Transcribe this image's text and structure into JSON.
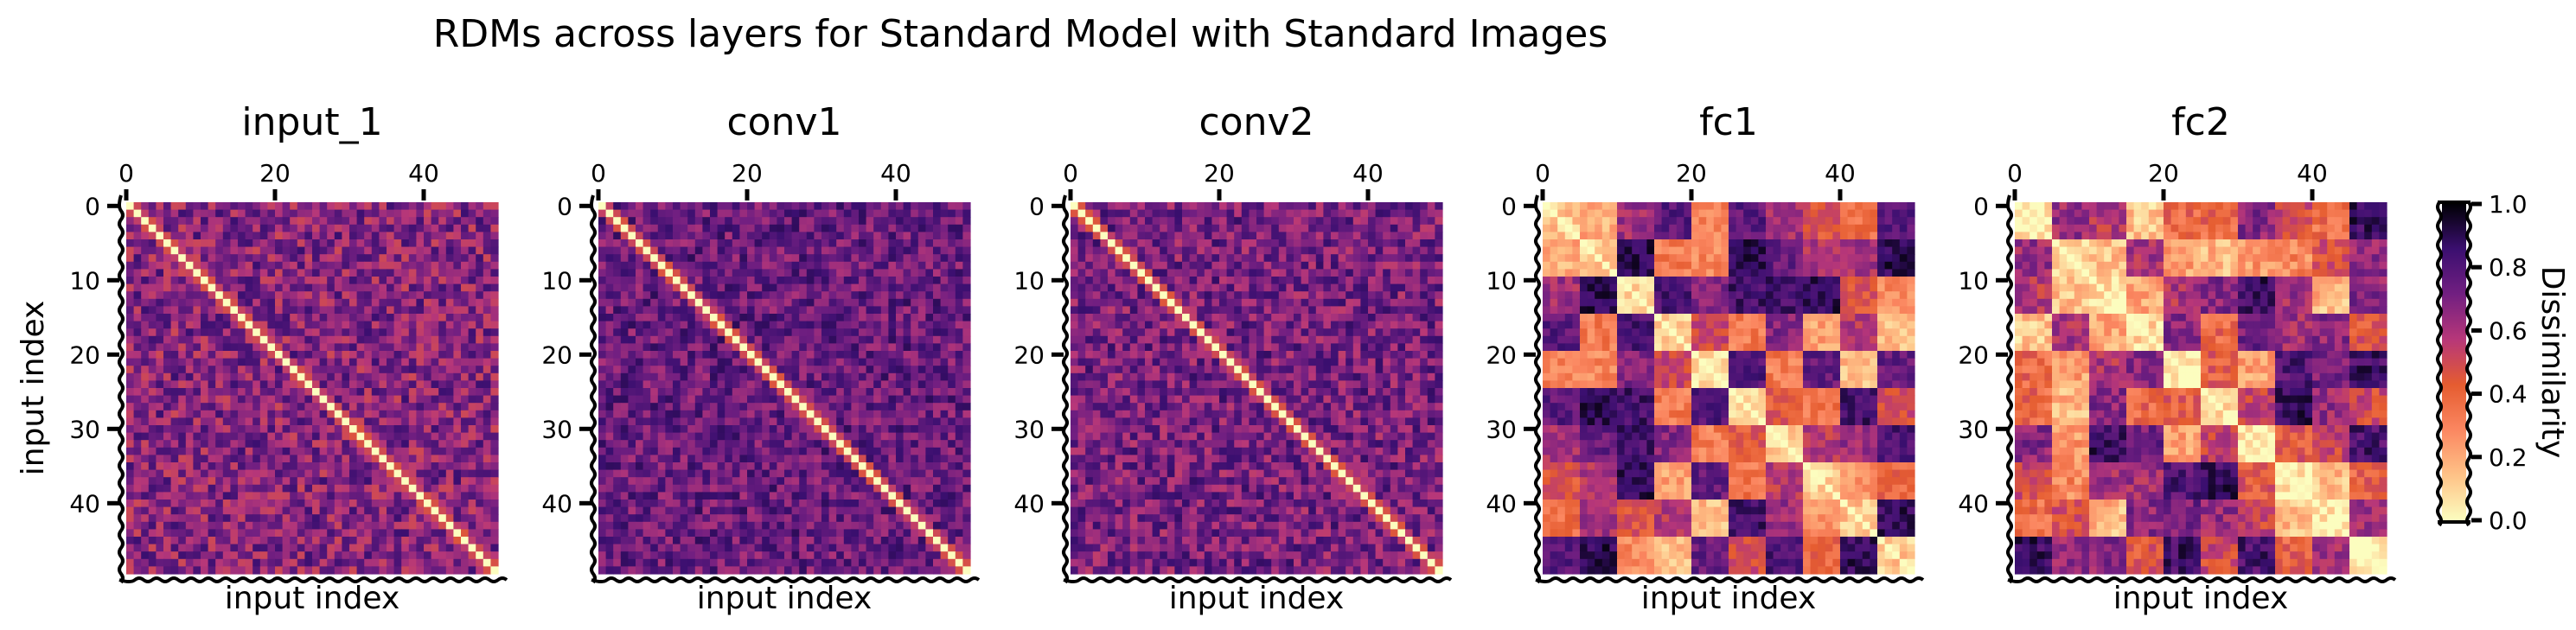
{
  "figure": {
    "suptitle": "RDMs across layers for Standard Model with Standard Images"
  },
  "chart_data": [
    {
      "type": "heatmap",
      "title": "input_1",
      "xlabel": "input index",
      "ylabel": "input index",
      "n": 50,
      "x_ticks": [
        0,
        20,
        40
      ],
      "y_ticks": [
        0,
        10,
        20,
        30,
        40
      ],
      "xlim": [
        0,
        49
      ],
      "ylim": [
        0,
        49
      ],
      "block_size": 1,
      "noise": 0.12,
      "base": 0.68,
      "blockiness": 0.0,
      "diagonal": 0.0,
      "near_diagonal": 0.45
    },
    {
      "type": "heatmap",
      "title": "conv1",
      "xlabel": "input index",
      "ylabel": "",
      "n": 50,
      "x_ticks": [
        0,
        20,
        40
      ],
      "y_ticks": [
        0,
        10,
        20,
        30,
        40
      ],
      "xlim": [
        0,
        49
      ],
      "ylim": [
        0,
        49
      ],
      "block_size": 1,
      "noise": 0.1,
      "base": 0.74,
      "blockiness": 0.0,
      "diagonal": 0.0,
      "near_diagonal": 0.45
    },
    {
      "type": "heatmap",
      "title": "conv2",
      "xlabel": "input index",
      "ylabel": "",
      "n": 50,
      "x_ticks": [
        0,
        20,
        40
      ],
      "y_ticks": [
        0,
        10,
        20,
        30,
        40
      ],
      "xlim": [
        0,
        49
      ],
      "ylim": [
        0,
        49
      ],
      "block_size": 1,
      "noise": 0.11,
      "base": 0.71,
      "blockiness": 0.0,
      "diagonal": 0.0,
      "near_diagonal": 0.45
    },
    {
      "type": "heatmap",
      "title": "fc1",
      "xlabel": "input index",
      "ylabel": "",
      "n": 50,
      "x_ticks": [
        0,
        20,
        40
      ],
      "y_ticks": [
        0,
        10,
        20,
        30,
        40
      ],
      "xlim": [
        0,
        49
      ],
      "ylim": [
        0,
        49
      ],
      "block_size": 5,
      "noise": 0.18,
      "base": 0.52,
      "blockiness": 1.0,
      "diagonal": 0.08,
      "near_diagonal": 0.0
    },
    {
      "type": "heatmap",
      "title": "fc2",
      "xlabel": "input index",
      "ylabel": "",
      "n": 50,
      "x_ticks": [
        0,
        20,
        40
      ],
      "y_ticks": [
        0,
        10,
        20,
        30,
        40
      ],
      "xlim": [
        0,
        49
      ],
      "ylim": [
        0,
        49
      ],
      "block_size": 5,
      "noise": 0.22,
      "base": 0.5,
      "blockiness": 1.0,
      "diagonal": 0.03,
      "near_diagonal": 0.0
    }
  ],
  "colorbar": {
    "label": "Dissimilarity",
    "range": [
      0.0,
      1.0
    ],
    "ticks": [
      "1.0",
      "0.8",
      "0.6",
      "0.4",
      "0.2",
      "0.0"
    ],
    "tick_values": [
      1.0,
      0.8,
      0.6,
      0.4,
      0.2,
      0.0
    ],
    "colormap": "magma_r",
    "colormap_stops": [
      "#fcfdbf",
      "#fec287",
      "#fb8761",
      "#e55c30",
      "#b73779",
      "#721f81",
      "#3b0f70",
      "#000004"
    ]
  },
  "colors": {
    "background": "#ffffff",
    "axes": "#000000"
  }
}
